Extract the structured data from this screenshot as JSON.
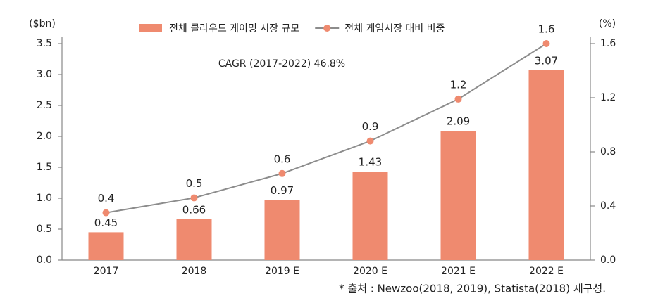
{
  "chart_data": {
    "type": "bar-line",
    "y_label": "($bn)",
    "y2_label": "(%)",
    "annotation": "CAGR (2017-2022) 46.8%",
    "source": "* 출처 : Newzoo(2018, 2019), Statista(2018) 재구성.",
    "categories": [
      "2017",
      "2018",
      "2019 E",
      "2020 E",
      "2021 E",
      "2022 E"
    ],
    "series": [
      {
        "name": "전체 클라우드 게이밍 시장 규모",
        "type": "bar",
        "color": "#ef8a6f",
        "values": [
          0.45,
          0.66,
          0.97,
          1.43,
          2.09,
          3.07
        ]
      },
      {
        "name": "전체 게임시장 대비 비중",
        "type": "line",
        "axis": "y2",
        "color": "#ef8a6f",
        "line_color": "#8c8c8c",
        "values": [
          0.35,
          0.46,
          0.64,
          0.88,
          1.19,
          1.6
        ],
        "value_labels": [
          "0.4",
          "0.5",
          "0.6",
          "0.9",
          "1.2",
          "1.6"
        ]
      }
    ],
    "ylim": [
      0,
      3.5
    ],
    "yticks": [
      {
        "value": 0,
        "label": "0.0"
      },
      0.5,
      {
        "value": 1,
        "label": "1.0"
      },
      1.5,
      {
        "value": 2,
        "label": "2.0"
      },
      2.5,
      {
        "value": 3,
        "label": "3.0"
      },
      3.5
    ],
    "y2lim": [
      0,
      1.6
    ],
    "y2ticks": [
      {
        "value": 0,
        "label": "0.0"
      },
      0.4,
      0.8,
      1.2,
      1.6
    ]
  }
}
